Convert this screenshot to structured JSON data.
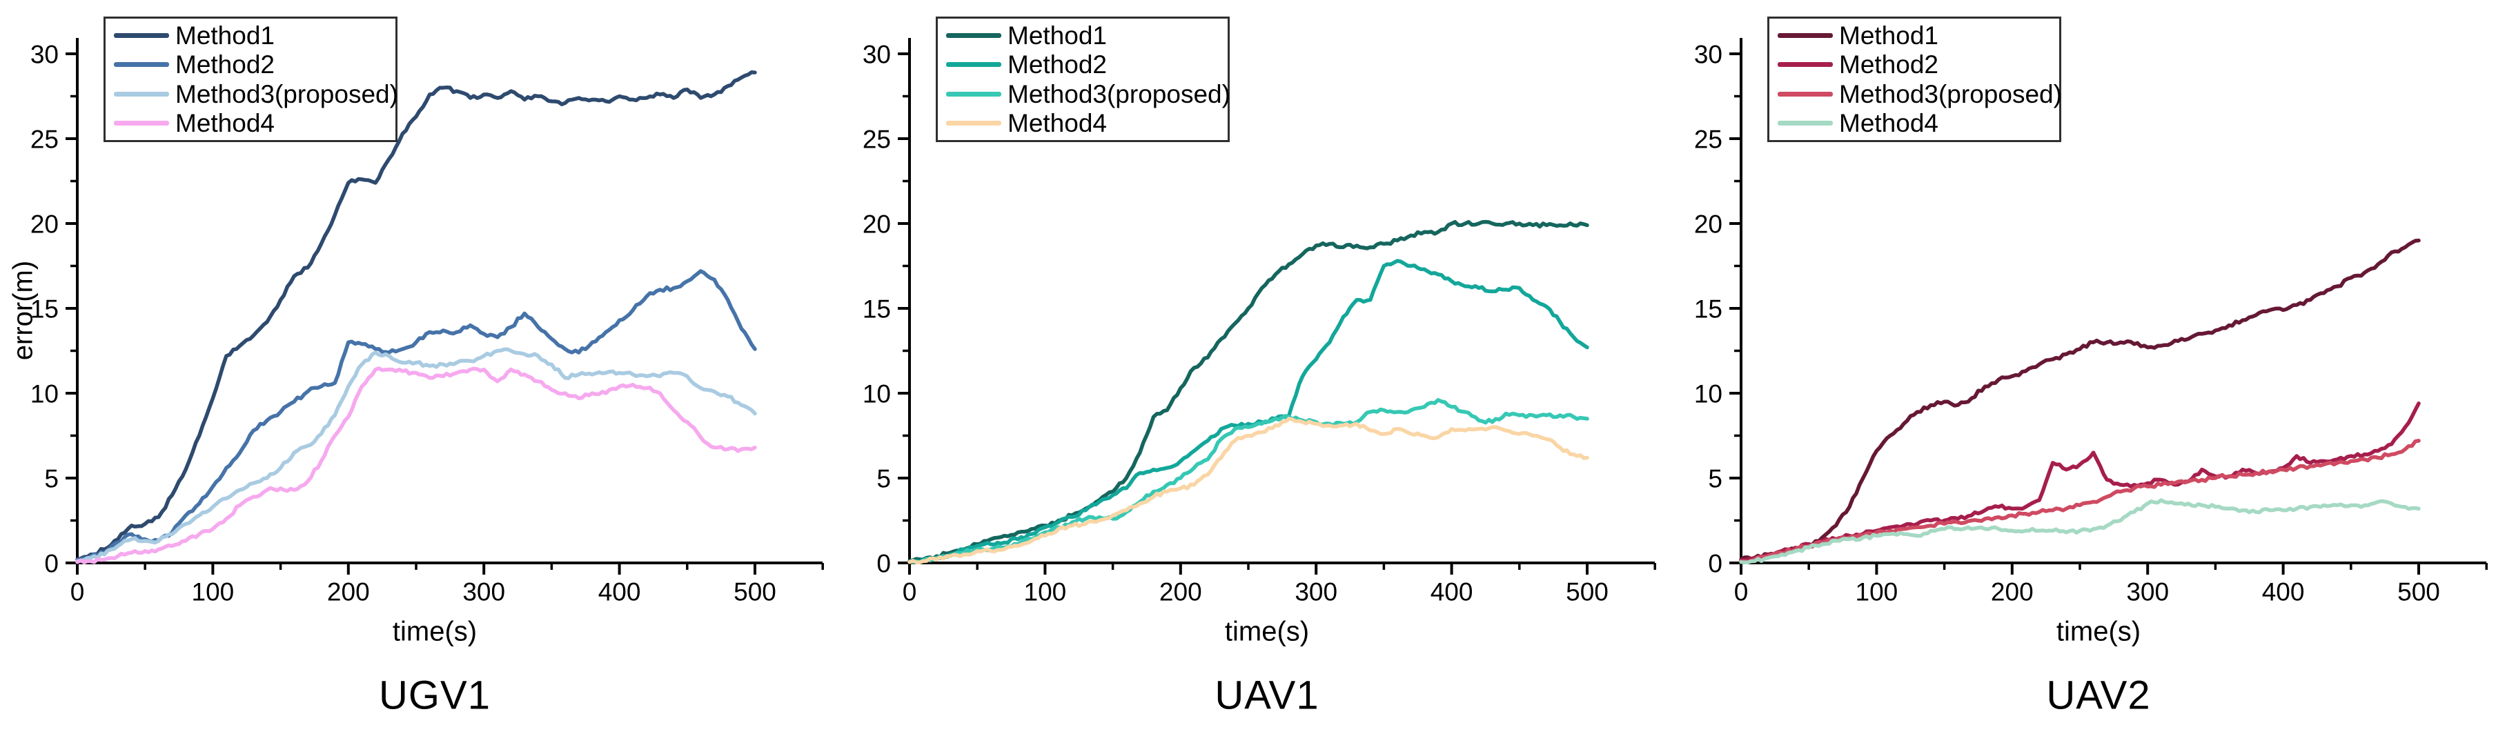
{
  "figure": {
    "background": "#ffffff"
  },
  "time_s": [
    0,
    10,
    20,
    30,
    40,
    50,
    60,
    70,
    80,
    90,
    100,
    110,
    120,
    130,
    140,
    150,
    160,
    170,
    180,
    190,
    200,
    210,
    220,
    230,
    240,
    250,
    260,
    270,
    280,
    290,
    300,
    310,
    320,
    330,
    340,
    350,
    360,
    370,
    380,
    390,
    400,
    410,
    420,
    430,
    440,
    450,
    460,
    470,
    480,
    490,
    500
  ],
  "chart_data": [
    {
      "type": "line",
      "title": "UGV1",
      "xlabel": "time(s)",
      "ylabel": "error(m)",
      "xlim": [
        0,
        550
      ],
      "ylim": [
        0,
        30.8
      ],
      "xticks": [
        0,
        100,
        200,
        300,
        400,
        500
      ],
      "yticks": [
        0,
        5,
        10,
        15,
        20,
        25,
        30
      ],
      "grid": "off",
      "legend_position": "top-left",
      "series": [
        {
          "name": "Method1",
          "color": "#2e4a6f",
          "values": [
            0.2,
            0.5,
            0.8,
            1.4,
            2.2,
            2.3,
            2.7,
            4.0,
            5.5,
            7.5,
            9.7,
            12.2,
            12.8,
            13.4,
            14.2,
            15.5,
            16.9,
            17.4,
            18.8,
            20.5,
            22.4,
            22.6,
            22.4,
            23.8,
            25.3,
            26.3,
            27.6,
            28.0,
            27.8,
            27.4,
            27.6,
            27.4,
            27.8,
            27.3,
            27.5,
            27.2,
            27.1,
            27.4,
            27.3,
            27.2,
            27.5,
            27.3,
            27.4,
            27.6,
            27.4,
            27.9,
            27.4,
            27.6,
            28.1,
            28.6,
            28.9
          ]
        },
        {
          "name": "Method2",
          "color": "#4673a8",
          "values": [
            0.2,
            0.4,
            0.6,
            1.2,
            1.7,
            1.4,
            1.3,
            1.8,
            2.8,
            3.5,
            4.5,
            5.6,
            6.5,
            7.8,
            8.4,
            8.9,
            9.5,
            10.1,
            10.4,
            10.6,
            13.0,
            12.9,
            12.6,
            12.4,
            12.6,
            13.0,
            13.6,
            13.7,
            13.6,
            14.0,
            13.5,
            13.3,
            13.9,
            14.7,
            13.9,
            13.2,
            12.6,
            12.4,
            13.0,
            13.6,
            14.3,
            14.9,
            15.7,
            16.1,
            16.2,
            16.6,
            17.2,
            16.7,
            15.5,
            13.8,
            12.6
          ]
        },
        {
          "name": "Method3(proposed)",
          "color": "#a9cbe2",
          "values": [
            0.1,
            0.3,
            0.5,
            1.0,
            1.4,
            1.3,
            1.3,
            1.7,
            2.3,
            2.8,
            3.3,
            3.8,
            4.3,
            4.7,
            5.0,
            5.6,
            6.5,
            6.9,
            7.6,
            8.7,
            10.4,
            11.7,
            12.4,
            12.2,
            11.8,
            11.8,
            11.6,
            11.7,
            11.8,
            11.9,
            12.2,
            12.5,
            12.5,
            12.3,
            12.2,
            11.7,
            10.9,
            11.1,
            11.1,
            11.2,
            11.2,
            11.1,
            11.0,
            11.0,
            11.2,
            11.0,
            10.3,
            10.1,
            9.8,
            9.3,
            8.8
          ]
        },
        {
          "name": "Method4",
          "color": "#f6a9ef",
          "values": [
            0.05,
            0.1,
            0.2,
            0.4,
            0.6,
            0.7,
            0.8,
            1.0,
            1.3,
            1.7,
            2.0,
            2.6,
            3.4,
            3.9,
            4.3,
            4.4,
            4.3,
            4.8,
            6.0,
            7.5,
            8.6,
            10.4,
            11.4,
            11.4,
            11.3,
            11.2,
            10.9,
            11.0,
            11.2,
            11.4,
            11.4,
            10.7,
            11.4,
            11.1,
            10.7,
            10.2,
            10.0,
            9.7,
            10.0,
            10.0,
            10.4,
            10.5,
            10.3,
            10.0,
            9.0,
            8.3,
            7.4,
            6.8,
            6.7,
            6.7,
            6.8
          ]
        }
      ]
    },
    {
      "type": "line",
      "title": "UAV1",
      "xlabel": "time(s)",
      "ylabel": "",
      "xlim": [
        0,
        550
      ],
      "ylim": [
        0,
        30.8
      ],
      "xticks": [
        0,
        100,
        200,
        300,
        400,
        500
      ],
      "yticks": [
        0,
        5,
        10,
        15,
        20,
        25,
        30
      ],
      "grid": "off",
      "legend_position": "top-left",
      "series": [
        {
          "name": "Method1",
          "color": "#15665e",
          "values": [
            0.1,
            0.2,
            0.4,
            0.6,
            0.8,
            1.1,
            1.4,
            1.6,
            1.8,
            2.0,
            2.2,
            2.5,
            2.8,
            3.2,
            3.7,
            4.2,
            5.0,
            6.5,
            8.6,
            9.0,
            10.3,
            11.5,
            12.1,
            13.2,
            14.1,
            15.0,
            16.2,
            17.0,
            17.6,
            18.2,
            18.7,
            18.8,
            18.6,
            18.7,
            18.6,
            18.8,
            19.0,
            19.3,
            19.5,
            19.5,
            20.0,
            20.0,
            20.0,
            20.0,
            20.0,
            20.0,
            19.9,
            19.9,
            19.9,
            19.9,
            19.9
          ]
        },
        {
          "name": "Method2",
          "color": "#13a79a",
          "values": [
            0.1,
            0.2,
            0.3,
            0.5,
            0.8,
            1.0,
            1.1,
            1.2,
            1.4,
            1.7,
            2.1,
            2.4,
            2.7,
            3.1,
            3.6,
            4.0,
            4.4,
            5.3,
            5.5,
            5.6,
            6.0,
            6.6,
            7.2,
            7.9,
            8.1,
            8.2,
            8.3,
            8.5,
            8.7,
            11.0,
            12.0,
            13.0,
            14.5,
            15.5,
            15.5,
            17.5,
            17.8,
            17.5,
            17.3,
            17.0,
            16.6,
            16.3,
            16.2,
            16.0,
            16.1,
            16.2,
            15.5,
            15.1,
            14.2,
            13.3,
            12.7
          ]
        },
        {
          "name": "Method3(proposed)",
          "color": "#36c8b4",
          "values": [
            0.05,
            0.1,
            0.3,
            0.4,
            0.6,
            0.8,
            0.8,
            0.9,
            1.1,
            1.4,
            1.8,
            2.1,
            2.4,
            2.6,
            2.7,
            2.6,
            3.0,
            3.6,
            4.2,
            4.6,
            5.0,
            5.6,
            6.1,
            7.3,
            7.9,
            8.0,
            8.2,
            8.5,
            8.6,
            8.4,
            8.3,
            8.2,
            8.2,
            8.3,
            8.9,
            9.0,
            8.9,
            9.0,
            9.2,
            9.6,
            9.2,
            8.9,
            8.4,
            8.3,
            8.8,
            8.7,
            8.7,
            8.7,
            8.7,
            8.6,
            8.5
          ]
        },
        {
          "name": "Method4",
          "color": "#fad5a5",
          "values": [
            0.05,
            0.1,
            0.2,
            0.4,
            0.5,
            0.7,
            0.7,
            0.8,
            1.0,
            1.3,
            1.6,
            2.0,
            2.2,
            2.3,
            2.5,
            2.8,
            3.1,
            3.5,
            3.9,
            4.2,
            4.4,
            4.6,
            5.2,
            6.2,
            7.2,
            7.5,
            7.7,
            8.1,
            8.5,
            8.3,
            8.2,
            8.1,
            8.1,
            8.2,
            7.8,
            7.6,
            7.9,
            7.6,
            7.5,
            7.4,
            7.9,
            7.8,
            7.9,
            8.0,
            7.8,
            7.6,
            7.5,
            7.3,
            6.8,
            6.4,
            6.2
          ]
        }
      ]
    },
    {
      "type": "line",
      "title": "UAV2",
      "xlabel": "time(s)",
      "ylabel": "",
      "xlim": [
        0,
        550
      ],
      "ylim": [
        0,
        30.8
      ],
      "xticks": [
        0,
        100,
        200,
        300,
        400,
        500
      ],
      "yticks": [
        0,
        5,
        10,
        15,
        20,
        25,
        30
      ],
      "grid": "off",
      "legend_position": "top-left",
      "series": [
        {
          "name": "Method1",
          "color": "#661835",
          "values": [
            0.2,
            0.3,
            0.5,
            0.6,
            0.8,
            1.0,
            1.5,
            2.2,
            3.3,
            5.0,
            6.6,
            7.5,
            8.2,
            8.9,
            9.3,
            9.5,
            9.3,
            9.7,
            10.4,
            10.8,
            11.0,
            11.3,
            11.7,
            12.0,
            12.3,
            12.6,
            13.0,
            13.0,
            13.0,
            12.9,
            12.7,
            12.8,
            13.1,
            13.2,
            13.5,
            13.7,
            14.0,
            14.3,
            14.6,
            14.9,
            14.9,
            15.2,
            15.5,
            15.9,
            16.3,
            16.8,
            17.1,
            17.6,
            18.3,
            18.6,
            19.0
          ]
        },
        {
          "name": "Method2",
          "color": "#a61e4d",
          "values": [
            0.15,
            0.3,
            0.5,
            0.7,
            0.9,
            1.1,
            1.3,
            1.4,
            1.6,
            1.7,
            1.9,
            2.1,
            2.2,
            2.3,
            2.5,
            2.5,
            2.6,
            2.8,
            3.1,
            3.3,
            3.2,
            3.3,
            3.7,
            5.9,
            5.5,
            5.8,
            6.5,
            4.9,
            4.6,
            4.6,
            4.7,
            4.9,
            4.6,
            4.8,
            5.5,
            5.1,
            5.1,
            5.5,
            5.3,
            5.4,
            5.6,
            6.3,
            5.9,
            6.0,
            6.1,
            6.3,
            6.4,
            6.6,
            7.0,
            8.0,
            9.4
          ]
        },
        {
          "name": "Method3(proposed)",
          "color": "#cf4a62",
          "values": [
            0.1,
            0.2,
            0.4,
            0.6,
            0.8,
            1.0,
            1.2,
            1.4,
            1.5,
            1.6,
            1.8,
            1.9,
            2.0,
            2.1,
            2.2,
            2.3,
            2.4,
            2.5,
            2.6,
            2.7,
            2.8,
            2.9,
            3.0,
            3.1,
            3.2,
            3.4,
            3.6,
            3.9,
            4.2,
            4.4,
            4.5,
            4.6,
            4.7,
            4.8,
            4.9,
            5.0,
            5.1,
            5.2,
            5.3,
            5.4,
            5.5,
            5.6,
            5.7,
            5.8,
            5.9,
            6.0,
            6.1,
            6.2,
            6.4,
            6.7,
            7.2
          ]
        },
        {
          "name": "Method4",
          "color": "#a5d9c4",
          "values": [
            0.05,
            0.1,
            0.3,
            0.5,
            0.7,
            0.9,
            1.1,
            1.3,
            1.4,
            1.5,
            1.6,
            1.7,
            1.7,
            1.6,
            1.9,
            2.0,
            2.0,
            2.0,
            2.0,
            2.0,
            1.9,
            1.9,
            1.9,
            1.9,
            1.8,
            1.9,
            2.0,
            2.2,
            2.5,
            3.0,
            3.5,
            3.7,
            3.5,
            3.5,
            3.4,
            3.3,
            3.2,
            3.1,
            3.0,
            3.1,
            3.1,
            3.2,
            3.3,
            3.4,
            3.4,
            3.4,
            3.4,
            3.6,
            3.5,
            3.3,
            3.2
          ]
        }
      ]
    }
  ]
}
